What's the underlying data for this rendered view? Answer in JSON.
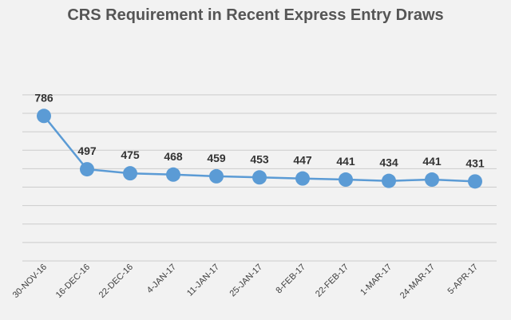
{
  "chart_data": {
    "type": "line",
    "title": "CRS Requirement in Recent Express Entry Draws",
    "categories": [
      "30-NOV-16",
      "16-DEC-16",
      "22-DEC-16",
      "4-JAN-17",
      "11-JAN-17",
      "25-JAN-17",
      "8-FEB-17",
      "22-FEB-17",
      "1-MAR-17",
      "24-MAR-17",
      "5-APR-17"
    ],
    "series": [
      {
        "values": [
          786,
          497,
          475,
          468,
          459,
          453,
          447,
          441,
          434,
          441,
          431
        ]
      }
    ],
    "data_labels": [
      "786",
      "497",
      "475",
      "468",
      "459",
      "453",
      "447",
      "441",
      "434",
      "441",
      "431"
    ],
    "ylim": [
      0,
      900
    ],
    "y_gridline_step": 100,
    "grid": true,
    "legend": "none",
    "line_color": "#5b9bd5",
    "marker_color": "#5b9bd5",
    "background_color": "#f2f2f2"
  }
}
